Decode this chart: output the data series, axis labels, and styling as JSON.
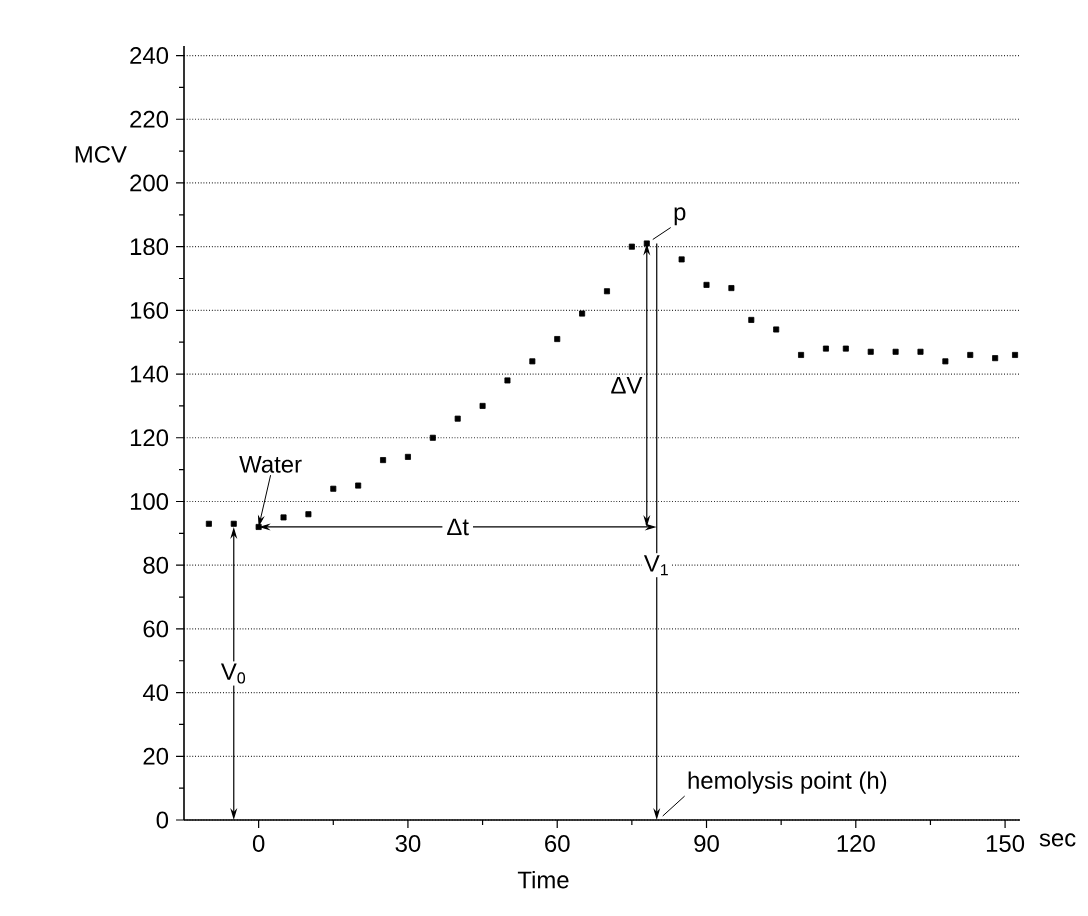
{
  "chart_data": {
    "type": "scatter",
    "xlabel": "Time",
    "ylabel": "MCV",
    "x": [
      -10,
      -5,
      0,
      5,
      10,
      15,
      20,
      25,
      30,
      35,
      40,
      45,
      50,
      55,
      60,
      65,
      70,
      75,
      78,
      85,
      90,
      95,
      99,
      104,
      109,
      114,
      118,
      123,
      128,
      133,
      138,
      143,
      148,
      152
    ],
    "values": [
      93,
      93,
      92,
      95,
      96,
      104,
      105,
      113,
      114,
      120,
      126,
      130,
      138,
      144,
      151,
      159,
      166,
      180,
      181,
      176,
      168,
      167,
      157,
      154,
      146,
      148,
      148,
      147,
      147,
      147,
      144,
      146,
      145,
      146
    ],
    "color": "#000000",
    "marker": "square",
    "xlim": [
      -15,
      153
    ],
    "ylim": [
      0,
      243
    ],
    "xticks": [
      0,
      30,
      60,
      90,
      120,
      150
    ],
    "yticks": [
      0,
      20,
      40,
      60,
      80,
      100,
      120,
      140,
      160,
      180,
      200,
      220,
      240
    ],
    "grid": "y",
    "annotations": [
      {
        "text": "Water",
        "x": 0,
        "y": 92
      },
      {
        "text": "p",
        "x": 78,
        "y": 181
      },
      "ΔV",
      {
        "text": "Δt",
        "x": 40,
        "y": 92
      },
      {
        "text": "V$_{0}$",
        "x": -5,
        "y": 46
      },
      {
        "text": "V$_{1}$",
        "x": 80,
        "y": 80
      },
      "hemolysis point (h)",
      "sec"
    ]
  }
}
